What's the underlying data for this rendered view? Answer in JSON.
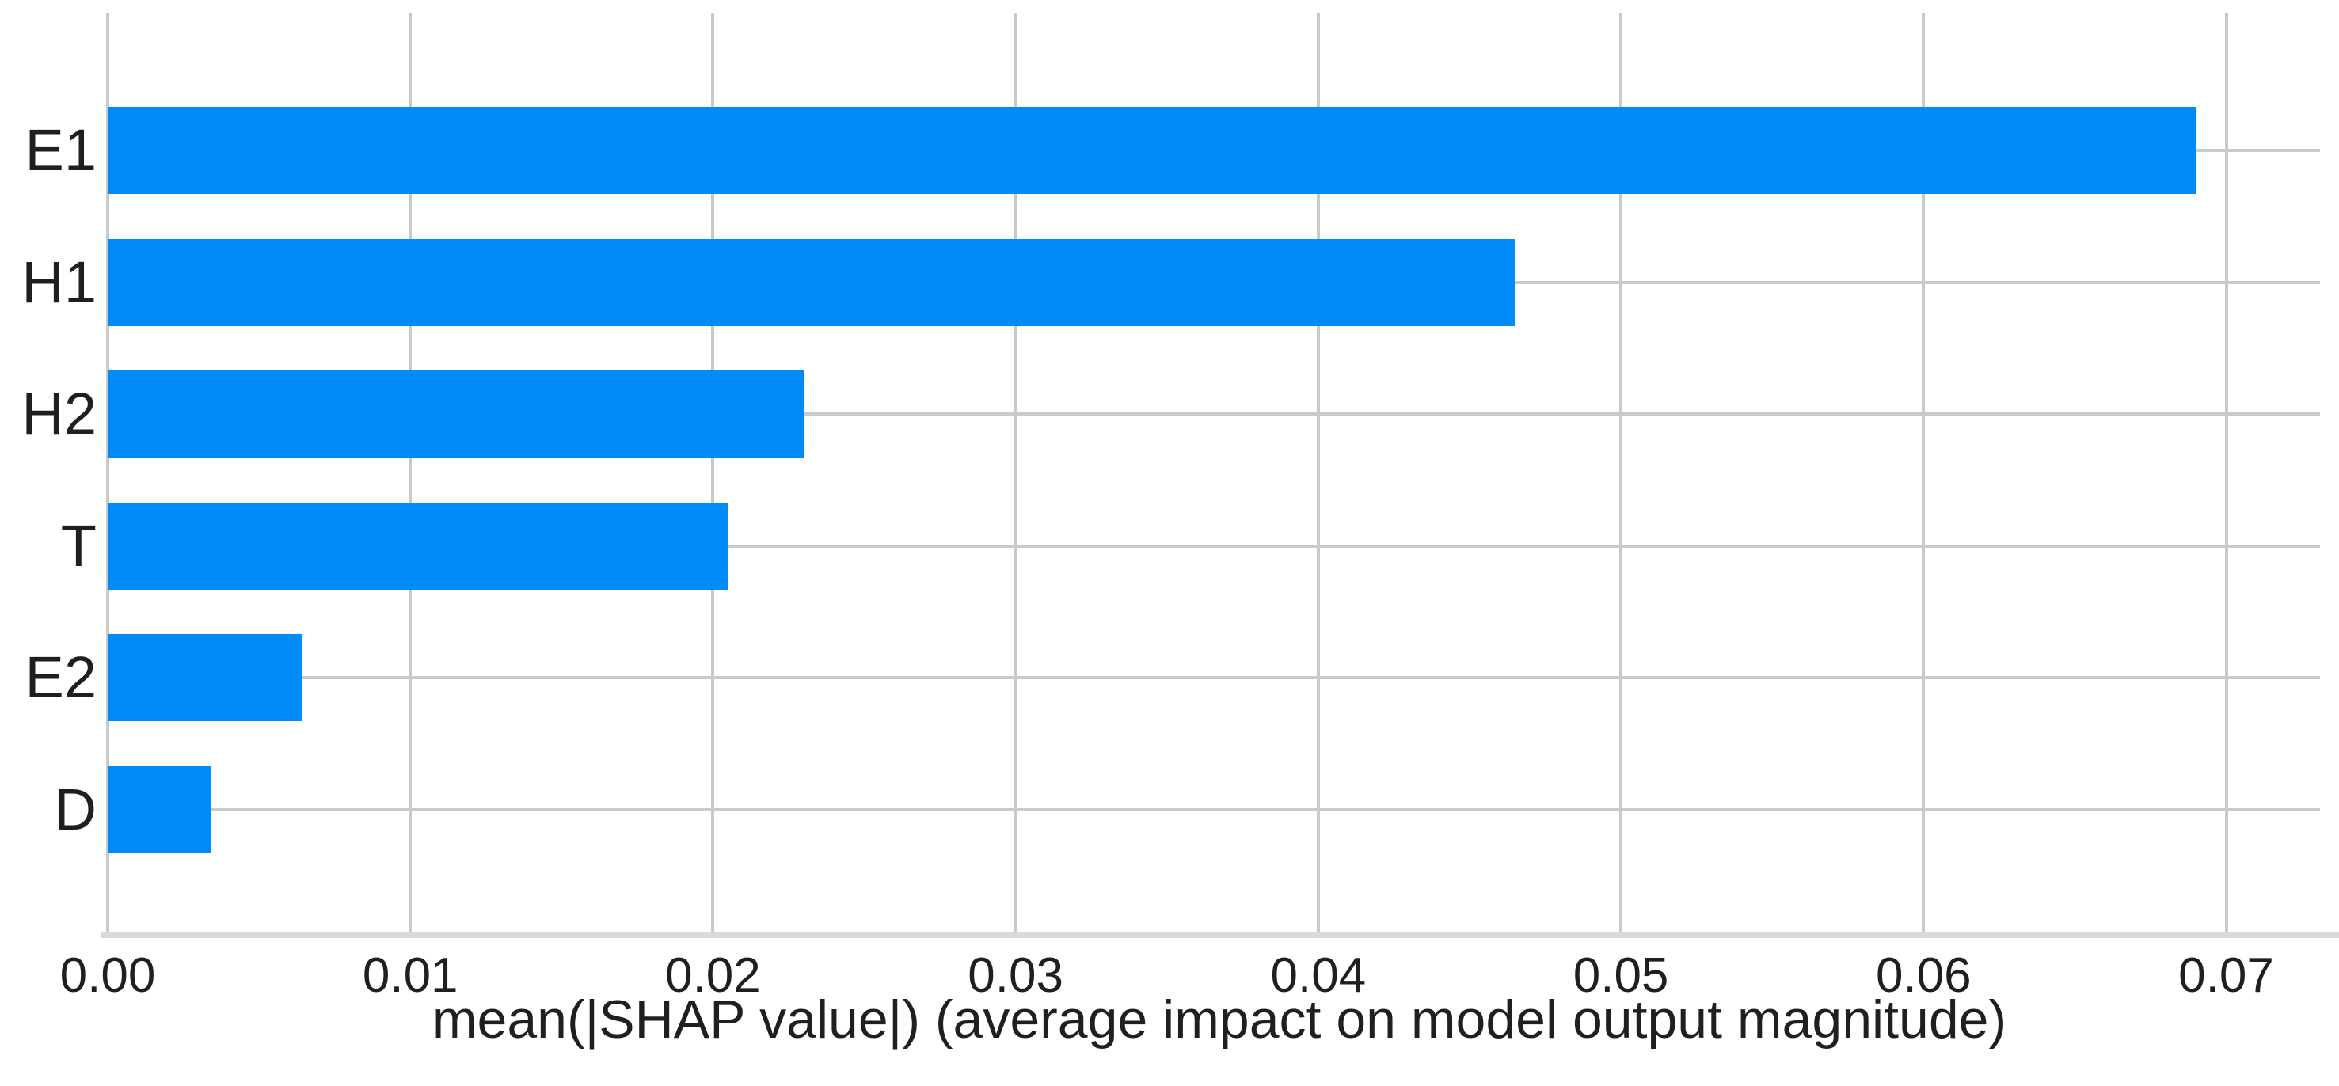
{
  "chart_data": {
    "type": "bar",
    "orientation": "horizontal",
    "title": "",
    "xlabel": "mean(|SHAP value|) (average impact on model output magnitude)",
    "ylabel": "",
    "categories": [
      "E1",
      "H1",
      "H2",
      "T",
      "E2",
      "D"
    ],
    "values": [
      0.069,
      0.0465,
      0.023,
      0.0205,
      0.0064,
      0.0034
    ],
    "xlim": [
      0,
      0.0731
    ],
    "xticks": [
      0,
      0.01,
      0.02,
      0.03,
      0.04,
      0.05,
      0.06,
      0.07
    ],
    "xtick_labels": [
      "0.00",
      "0.01",
      "0.02",
      "0.03",
      "0.04",
      "0.05",
      "0.06",
      "0.07"
    ],
    "grid": true,
    "legend_position": "none",
    "colors": {
      "bar": "#008bfb",
      "grid": "#c9c9c9",
      "axis_line": "#d9d9d9",
      "text": "#1f1f1f",
      "background": "#ffffff"
    }
  }
}
